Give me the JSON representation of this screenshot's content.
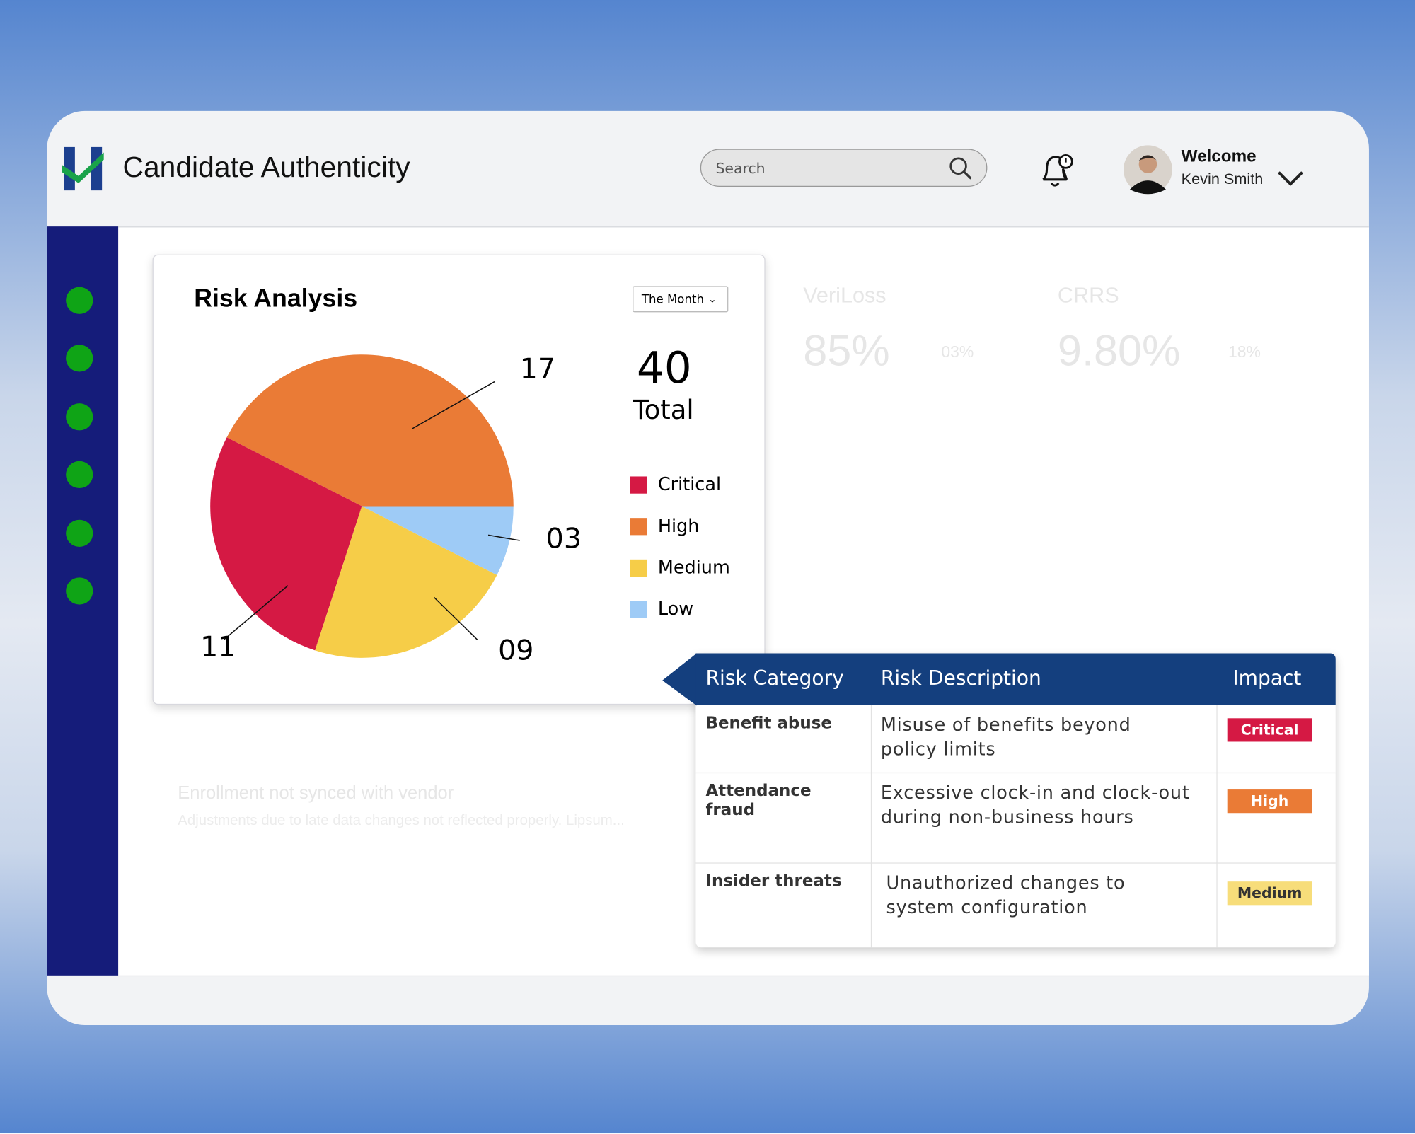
{
  "header": {
    "title": "Candidate Authenticity",
    "search_placeholder": "Search",
    "welcome": "Welcome",
    "user_name": "Kevin Smith"
  },
  "background": {
    "metrics": [
      {
        "label": "VeriLoss",
        "value": "85%",
        "change": "03%"
      },
      {
        "label": "CRRS",
        "value": "9.80%",
        "change": "18%"
      }
    ],
    "alert_title": "Enrollment not synced with vendor",
    "alert_text": "Adjustments due to late data changes not reflected properly. Lipsum..."
  },
  "chart_data": {
    "type": "pie",
    "title": "Risk Analysis",
    "period": "The Month",
    "total": 40,
    "total_label": "Total",
    "categories": [
      "Critical",
      "High",
      "Medium",
      "Low"
    ],
    "values": [
      11,
      17,
      9,
      3
    ],
    "value_labels": [
      "11",
      "17",
      "09",
      "03"
    ],
    "colors": [
      "#d51944",
      "#ea7b36",
      "#f6cd48",
      "#9ecbf6"
    ]
  },
  "table": {
    "columns": [
      "Risk Category",
      "Risk Description",
      "Impact"
    ],
    "rows": [
      [
        "Benefit abuse",
        "Misuse of benefits beyond policy limits",
        "Critical"
      ],
      [
        "Attendance fraud",
        "Excessive clock-in and clock-out during non-business hours",
        "High"
      ],
      [
        "Insider threats",
        "Unauthorized changes to system configuration",
        "Medium"
      ]
    ]
  }
}
